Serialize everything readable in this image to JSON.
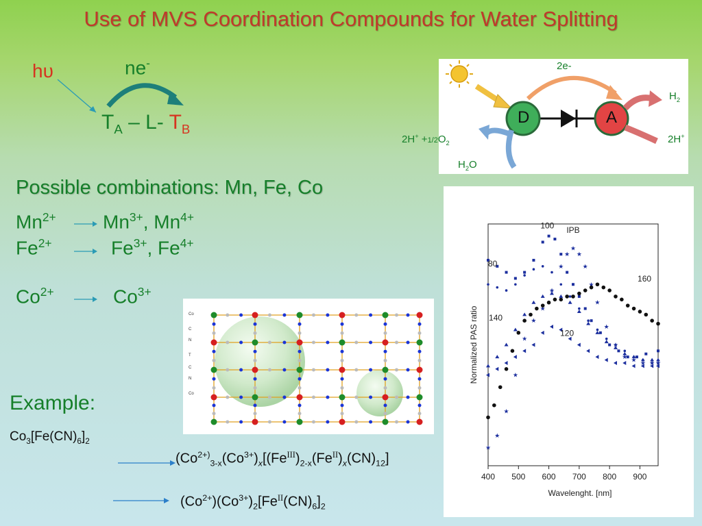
{
  "title": "Use of MVS Coordination Compounds for Water Splitting",
  "scheme": {
    "hv": "hυ",
    "ne": "ne",
    "ne_sup": "-",
    "ta": "T",
    "ta_sub": "A",
    "link": " – L- ",
    "tb": "T",
    "tb_sub": "B"
  },
  "diagram": {
    "d_label": "D",
    "a_label": "A",
    "top_label": "2e-",
    "h2": "H",
    "h2_sub": "2",
    "left_2h": "2H",
    "left_plus": "+",
    "left_mid": " +",
    "left_frac": "1/2",
    "left_o": "O",
    "left_o_sub": "2",
    "right_2h": "2H",
    "right_plus": "+",
    "h2o_h": "H",
    "h2o_sub": "2",
    "h2o_o": "O",
    "colors": {
      "donor": "#3fae5a",
      "acceptor": "#e24444",
      "arrow_orange": "#f0a068",
      "arrow_blue": "#7aa7d6"
    }
  },
  "combinations": {
    "heading": "Possible combinations: Mn, Fe, Co",
    "rows": [
      {
        "from": "Mn",
        "from_sup": "2+",
        "to1": "Mn",
        "to1_sup": "3+",
        "sep": ", ",
        "to2": "Mn",
        "to2_sup": "4+"
      },
      {
        "from": "Fe",
        "from_sup": "2+",
        "to1": "Fe",
        "to1_sup": "3+",
        "sep": ", ",
        "to2": "Fe",
        "to2_sup": "4+"
      },
      {
        "from": "Co",
        "from_sup": "2+",
        "to1": "Co",
        "to1_sup": "3+"
      }
    ]
  },
  "lattice": {
    "legend": [
      "Co",
      "C",
      "N",
      "T",
      "C",
      "N",
      "Co"
    ]
  },
  "example": {
    "heading": "Example:",
    "formula": {
      "a": "Co",
      "a_sub": "3",
      "b": "[Fe(CN)",
      "b_sub": "6",
      "c": "]",
      "c_sub": "2"
    },
    "line1": {
      "p1": "(Co",
      "s1": "2+)",
      "b1": "3-x",
      "p2": "(Co",
      "s2": "3+",
      "p3": ")",
      "b2": "x",
      "p4": "[(Fe",
      "s3": "III",
      "p5": ")",
      "b3": "2-x",
      "p6": "(Fe",
      "s4": "II",
      "p7": ")",
      "b4": "x",
      "p8": "(CN)",
      "b5": "12",
      "p9": "]"
    },
    "line2": {
      "p1": "(Co",
      "s1": "2+",
      "p2": ")(Co",
      "s2": "3+",
      "p3": ")",
      "b1": "2",
      "p4": "[Fe",
      "s3": "II",
      "p5": "(CN)",
      "b2": "6",
      "p6": "]",
      "b3": "2"
    }
  },
  "chart_data": {
    "type": "scatter",
    "xlabel": "Wavelenght. [nm]",
    "ylabel": "Normalized PAS ratio",
    "xlim": [
      400,
      960
    ],
    "x_ticks": [
      "400",
      "500",
      "600",
      "700",
      "800",
      "900"
    ],
    "series": [
      {
        "name": "IPB",
        "marker": "star",
        "color": "#1c2f9e",
        "x": [
          400,
          430,
          460,
          490,
          520,
          550,
          580,
          610,
          640,
          660,
          680,
          700,
          720,
          740,
          760,
          790,
          820,
          850,
          880,
          910,
          940,
          960
        ],
        "y": [
          0.16,
          0.2,
          0.28,
          0.4,
          0.52,
          0.58,
          0.62,
          0.68,
          0.76,
          0.8,
          0.82,
          0.8,
          0.76,
          0.7,
          0.64,
          0.56,
          0.5,
          0.46,
          0.45,
          0.44,
          0.44,
          0.44
        ]
      },
      {
        "name": "100",
        "marker": "square",
        "color": "#1c2f9e",
        "x": [
          400,
          430,
          460,
          490,
          520,
          550,
          580,
          600,
          620,
          640,
          660,
          680,
          700,
          720,
          740,
          770,
          800,
          830,
          860,
          890,
          920,
          960
        ],
        "y": [
          0.78,
          0.76,
          0.74,
          0.72,
          0.74,
          0.78,
          0.84,
          0.86,
          0.85,
          0.8,
          0.74,
          0.7,
          0.66,
          0.62,
          0.58,
          0.54,
          0.5,
          0.48,
          0.46,
          0.46,
          0.47,
          0.48
        ]
      },
      {
        "name": "80",
        "marker": "circle-small",
        "color": "#1c2f9e",
        "x": [
          400,
          430,
          460,
          490,
          520,
          550,
          580,
          610,
          640,
          670,
          700,
          730,
          760,
          790,
          820,
          850,
          880,
          910,
          940,
          960
        ],
        "y": [
          0.7,
          0.69,
          0.68,
          0.7,
          0.73,
          0.75,
          0.76,
          0.74,
          0.7,
          0.66,
          0.62,
          0.58,
          0.55,
          0.52,
          0.5,
          0.48,
          0.46,
          0.45,
          0.44,
          0.44
        ]
      },
      {
        "name": "160",
        "marker": "circle",
        "color": "#111111",
        "x": [
          400,
          420,
          440,
          460,
          480,
          500,
          520,
          540,
          560,
          580,
          600,
          620,
          640,
          660,
          680,
          700,
          720,
          740,
          760,
          780,
          800,
          820,
          840,
          860,
          880,
          900,
          920,
          940,
          960
        ],
        "y": [
          0.26,
          0.3,
          0.36,
          0.42,
          0.48,
          0.54,
          0.58,
          0.6,
          0.62,
          0.63,
          0.64,
          0.65,
          0.65,
          0.66,
          0.66,
          0.67,
          0.68,
          0.69,
          0.7,
          0.69,
          0.68,
          0.66,
          0.65,
          0.63,
          0.62,
          0.61,
          0.6,
          0.58,
          0.57
        ]
      },
      {
        "name": "140",
        "marker": "triangle",
        "color": "#1c2f9e",
        "x": [
          400,
          430,
          460,
          490,
          520,
          550,
          580,
          610,
          640,
          670,
          700,
          730,
          760,
          790,
          820,
          850,
          880,
          910,
          940,
          960
        ],
        "y": [
          0.43,
          0.46,
          0.5,
          0.55,
          0.6,
          0.64,
          0.66,
          0.67,
          0.66,
          0.64,
          0.61,
          0.57,
          0.54,
          0.51,
          0.49,
          0.47,
          0.46,
          0.45,
          0.45,
          0.45
        ]
      },
      {
        "name": "120",
        "marker": "triangle-left",
        "color": "#1c2f9e",
        "x": [
          400,
          430,
          460,
          490,
          520,
          550,
          580,
          610,
          640,
          670,
          700,
          730,
          760,
          790,
          820,
          850,
          880,
          910,
          940,
          960
        ],
        "y": [
          0.4,
          0.42,
          0.44,
          0.46,
          0.48,
          0.5,
          0.54,
          0.56,
          0.55,
          0.52,
          0.5,
          0.48,
          0.46,
          0.45,
          0.44,
          0.44,
          0.43,
          0.43,
          0.43,
          0.43
        ]
      }
    ]
  }
}
